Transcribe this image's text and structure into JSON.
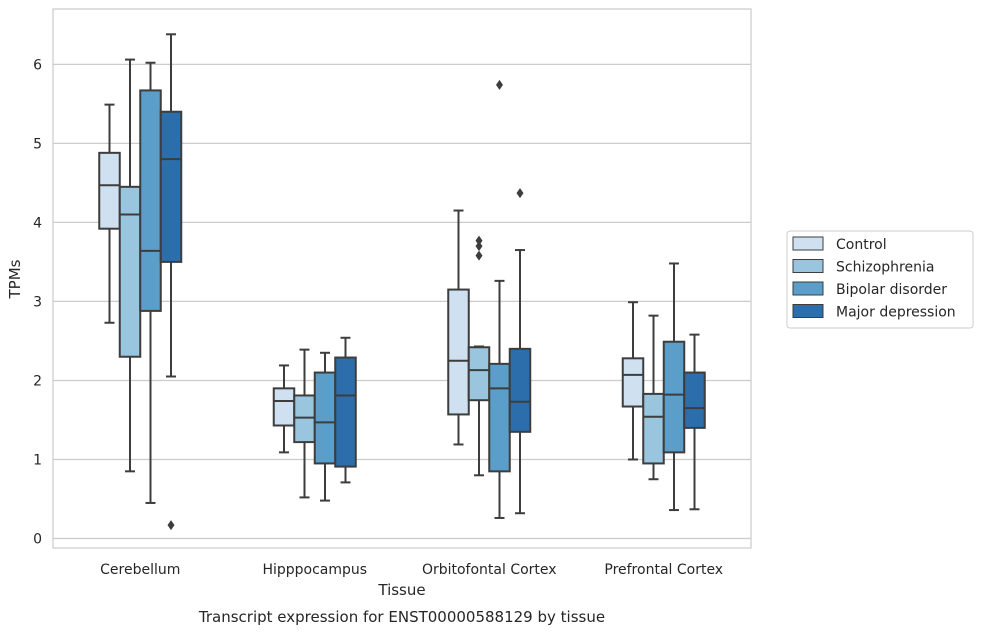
{
  "chart_data": {
    "type": "box",
    "caption": "Transcript expression for ENST00000588129 by tissue",
    "xlabel": "Tissue",
    "ylabel": "TPMs",
    "ylim": [
      -0.12,
      6.7
    ],
    "yticks": [
      0,
      1,
      2,
      3,
      4,
      5,
      6
    ],
    "grid": true,
    "legend_position": "right",
    "categories": [
      "Cerebellum",
      "Hipppocampus",
      "Orbitofontal Cortex",
      "Prefrontal Cortex"
    ],
    "series": [
      {
        "name": "Control",
        "color": "#cfe0f1",
        "boxes": [
          {
            "whislo": 2.73,
            "q1": 3.92,
            "med": 4.47,
            "q3": 4.88,
            "whishi": 5.49,
            "fliers": []
          },
          {
            "whislo": 1.09,
            "q1": 1.43,
            "med": 1.74,
            "q3": 1.9,
            "whishi": 2.19,
            "fliers": []
          },
          {
            "whislo": 1.19,
            "q1": 1.57,
            "med": 2.25,
            "q3": 3.15,
            "whishi": 4.15,
            "fliers": []
          },
          {
            "whislo": 1.0,
            "q1": 1.67,
            "med": 2.07,
            "q3": 2.28,
            "whishi": 2.99,
            "fliers": []
          }
        ]
      },
      {
        "name": "Schizophrenia",
        "color": "#9ac5de",
        "boxes": [
          {
            "whislo": 0.85,
            "q1": 2.3,
            "med": 4.1,
            "q3": 4.45,
            "whishi": 6.06,
            "fliers": []
          },
          {
            "whislo": 0.52,
            "q1": 1.22,
            "med": 1.53,
            "q3": 1.81,
            "whishi": 2.39,
            "fliers": []
          },
          {
            "whislo": 0.8,
            "q1": 1.75,
            "med": 2.13,
            "q3": 2.42,
            "whishi": 2.43,
            "fliers": [
              3.58,
              3.7,
              3.77
            ]
          },
          {
            "whislo": 0.75,
            "q1": 0.95,
            "med": 1.54,
            "q3": 1.83,
            "whishi": 2.82,
            "fliers": []
          }
        ]
      },
      {
        "name": "Bipolar disorder",
        "color": "#5a9ec9",
        "boxes": [
          {
            "whislo": 0.45,
            "q1": 2.88,
            "med": 3.64,
            "q3": 5.67,
            "whishi": 6.02,
            "fliers": []
          },
          {
            "whislo": 0.48,
            "q1": 0.95,
            "med": 1.47,
            "q3": 2.1,
            "whishi": 2.35,
            "fliers": []
          },
          {
            "whislo": 0.26,
            "q1": 0.85,
            "med": 1.9,
            "q3": 2.21,
            "whishi": 3.26,
            "fliers": [
              5.74
            ]
          },
          {
            "whislo": 0.36,
            "q1": 1.09,
            "med": 1.82,
            "q3": 2.49,
            "whishi": 3.48,
            "fliers": []
          }
        ]
      },
      {
        "name": "Major depression",
        "color": "#2c6eab",
        "boxes": [
          {
            "whislo": 2.05,
            "q1": 3.5,
            "med": 4.8,
            "q3": 5.4,
            "whishi": 6.38,
            "fliers": [
              0.17
            ]
          },
          {
            "whislo": 0.71,
            "q1": 0.91,
            "med": 1.81,
            "q3": 2.29,
            "whishi": 2.54,
            "fliers": []
          },
          {
            "whislo": 0.32,
            "q1": 1.35,
            "med": 1.73,
            "q3": 2.4,
            "whishi": 3.65,
            "fliers": [
              4.37
            ]
          },
          {
            "whislo": 0.37,
            "q1": 1.4,
            "med": 1.65,
            "q3": 2.1,
            "whishi": 2.58,
            "fliers": []
          }
        ]
      }
    ]
  }
}
